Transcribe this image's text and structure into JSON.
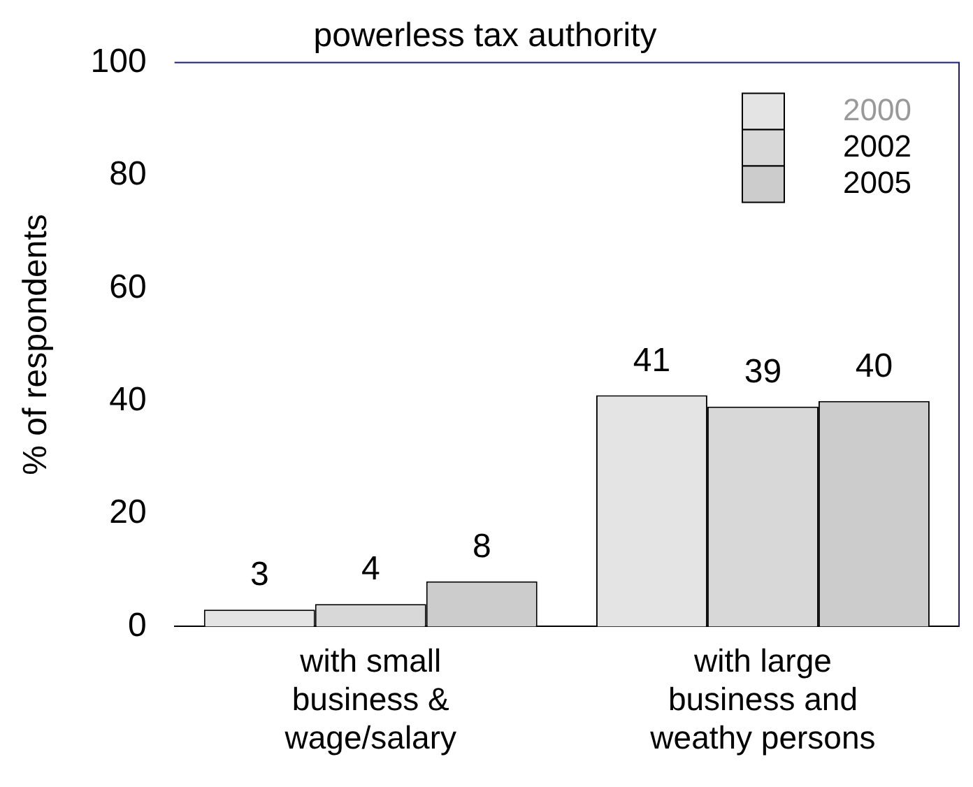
{
  "chart_data": {
    "type": "bar",
    "title": "powerless tax authority",
    "ylabel": "% of respondents",
    "categories": [
      "with small business & wage/salary",
      "with large business and weathy persons"
    ],
    "series": [
      {
        "name": "2000",
        "color": "#e4e4e4",
        "values": [
          3,
          41
        ]
      },
      {
        "name": "2002",
        "color": "#d8d8d8",
        "values": [
          4,
          39
        ]
      },
      {
        "name": "2005",
        "color": "#cccccc",
        "values": [
          8,
          40
        ]
      }
    ],
    "ylim": [
      0,
      100
    ],
    "yticks": [
      0,
      20,
      40,
      60,
      80,
      100
    ],
    "grid": false,
    "legend": "top right",
    "data_labels": true
  }
}
